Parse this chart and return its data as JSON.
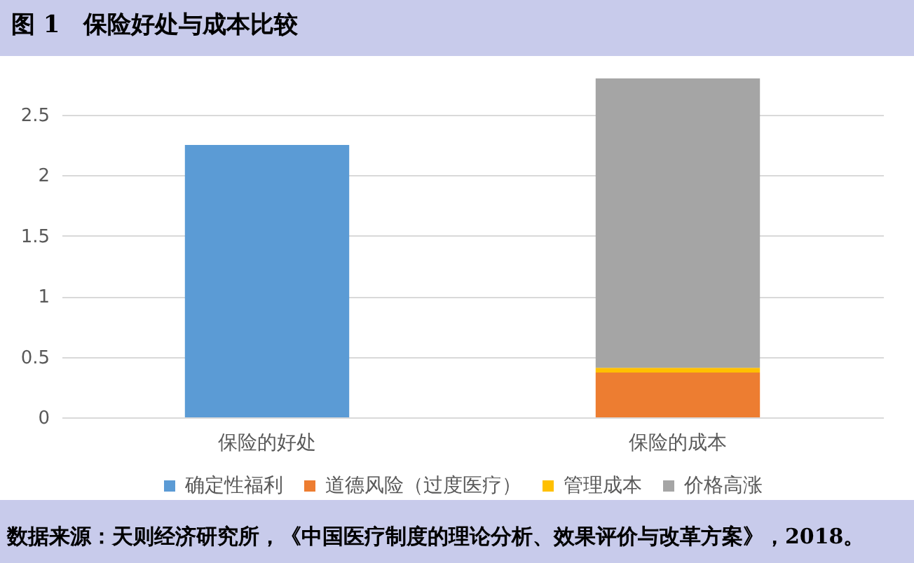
{
  "chart_data": {
    "type": "bar",
    "title": "图 1　保险好处与成本比较",
    "categories": [
      "保险的好处",
      "保险的成本"
    ],
    "series": [
      {
        "name": "确定性福利",
        "color": "#5b9bd5",
        "values": [
          2.25,
          null
        ]
      },
      {
        "name": "道德风险（过度医疗）",
        "color": "#ed7d31",
        "values": [
          null,
          0.37
        ]
      },
      {
        "name": "管理成本",
        "color": "#ffc000",
        "values": [
          null,
          0.04
        ]
      },
      {
        "name": "价格高涨",
        "color": "#a5a5a5",
        "values": [
          null,
          2.39
        ]
      }
    ],
    "stacked": true,
    "ylim": [
      0,
      2.8
    ],
    "yticks": [
      0,
      0.5,
      1,
      1.5,
      2,
      2.5
    ],
    "grid": "y",
    "legend": "bottom",
    "annotations": [
      "数据来源：天则经济研究所，《中国医疗制度的理论分析、效果评价与改革方案》，2018。"
    ]
  }
}
